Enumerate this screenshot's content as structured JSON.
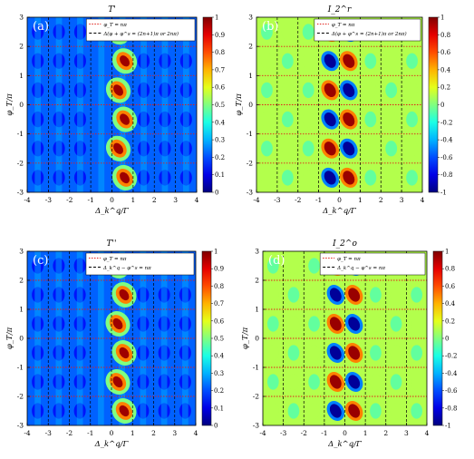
{
  "chart_data": [
    {
      "panel": "(a)",
      "type": "heatmap",
      "title": "T'",
      "xlabel": "Δ_k^q/Γ",
      "ylabel": "φ_T/π",
      "xlim": [
        -4,
        4
      ],
      "ylim": [
        -3,
        3
      ],
      "xticks": [
        "-4",
        "-3",
        "-2",
        "-1",
        "0",
        "1",
        "2",
        "3",
        "4"
      ],
      "yticks": [
        "-3",
        "-2",
        "-1",
        "0",
        "1",
        "2",
        "3"
      ],
      "colorbar": {
        "min": 0,
        "max": 1,
        "ticks": [
          "0",
          "0.1",
          "0.2",
          "0.3",
          "0.4",
          "0.5",
          "0.6",
          "0.7",
          "0.8",
          "0.9",
          "1"
        ]
      },
      "colorscale": "jet",
      "legend": [
        {
          "label": "φ_T = nπ",
          "color": "#e0201a",
          "style": "dotted"
        },
        {
          "label": "Δ(φ + φ^s = (2n+1)π or 2nπ)",
          "color": "#000000",
          "style": "dashed"
        }
      ],
      "legend_position": "top-right",
      "grid": false,
      "features": "bright oval peaks (value ~1) along a diagonal band x ≈ 0.4 to 0.7 for y near odd halves; weaker blobs around the band"
    },
    {
      "panel": "(b)",
      "type": "heatmap",
      "title": "I_2^r",
      "xlabel": "Δ_k^q/Γ",
      "ylabel": "φ_T/π",
      "xlim": [
        -4,
        4
      ],
      "ylim": [
        -3,
        3
      ],
      "xticks": [
        "-4",
        "-3",
        "-2",
        "-1",
        "0",
        "1",
        "2",
        "3",
        "4"
      ],
      "yticks": [
        "-3",
        "-2",
        "-1",
        "0",
        "1",
        "2",
        "3"
      ],
      "colorbar": {
        "min": -1,
        "max": 1,
        "ticks": [
          "-1",
          "-0.8",
          "-0.6",
          "-0.4",
          "-0.2",
          "0",
          "0.2",
          "0.4",
          "0.6",
          "0.8",
          "1"
        ]
      },
      "colorscale": "jet",
      "legend": [
        {
          "label": "φ_T = nπ",
          "color": "#e0201a",
          "style": "dotted"
        },
        {
          "label": "Δ(φ + φ^s = (2n+1)π or 2nπ)",
          "color": "#000000",
          "style": "dashed"
        }
      ],
      "legend_position": "top-right",
      "grid": false,
      "features": "antisymmetric red/blue oval pairs around x = 0 repeating every unit of y"
    },
    {
      "panel": "(c)",
      "type": "heatmap",
      "title": "T''",
      "xlabel": "Δ_k^q/Γ",
      "ylabel": "φ_T/π",
      "xlim": [
        -4,
        4
      ],
      "ylim": [
        -3,
        3
      ],
      "xticks": [
        "-4",
        "-3",
        "-2",
        "-1",
        "0",
        "1",
        "2",
        "3",
        "4"
      ],
      "yticks": [
        "-3",
        "-2",
        "-1",
        "0",
        "1",
        "2",
        "3"
      ],
      "colorbar": {
        "min": 0,
        "max": 1,
        "ticks": [
          "0",
          "0.1",
          "0.2",
          "0.3",
          "0.4",
          "0.5",
          "0.6",
          "0.7",
          "0.8",
          "0.9",
          "1"
        ]
      },
      "colorscale": "jet",
      "legend": [
        {
          "label": "φ_T = nπ",
          "color": "#e0201a",
          "style": "dotted"
        },
        {
          "label": "Δ_k^q − φ^s = nπ",
          "color": "#000000",
          "style": "dashed"
        }
      ],
      "legend_position": "top-right",
      "grid": false,
      "features": "teardrop shaped peaks tilted along a diagonal band, one per unit of y"
    },
    {
      "panel": "(d)",
      "type": "heatmap",
      "title": "I_2^o",
      "xlabel": "Δ_k^q/Γ",
      "ylabel": "φ_T/π",
      "xlim": [
        -4,
        4
      ],
      "ylim": [
        -3,
        3
      ],
      "xticks": [
        "-4",
        "-3",
        "-2",
        "-1",
        "0",
        "1",
        "2",
        "3",
        "4"
      ],
      "yticks": [
        "-3",
        "-2",
        "-1",
        "0",
        "1",
        "2",
        "3"
      ],
      "colorbar": {
        "min": -1,
        "max": 1,
        "ticks": [
          "-1",
          "-0.8",
          "-0.6",
          "-0.4",
          "-0.2",
          "0",
          "0.2",
          "0.4",
          "0.6",
          "0.8",
          "1"
        ]
      },
      "colorscale": "jet",
      "legend": [
        {
          "label": "φ_T = nπ",
          "color": "#e0201a",
          "style": "dotted"
        },
        {
          "label": "Δ_k^q − φ^s = nπ",
          "color": "#000000",
          "style": "dashed"
        }
      ],
      "legend_position": "top-right",
      "grid": false,
      "features": "alternating red/blue crescent pairs around x = 0 repeating every unit of y"
    }
  ]
}
